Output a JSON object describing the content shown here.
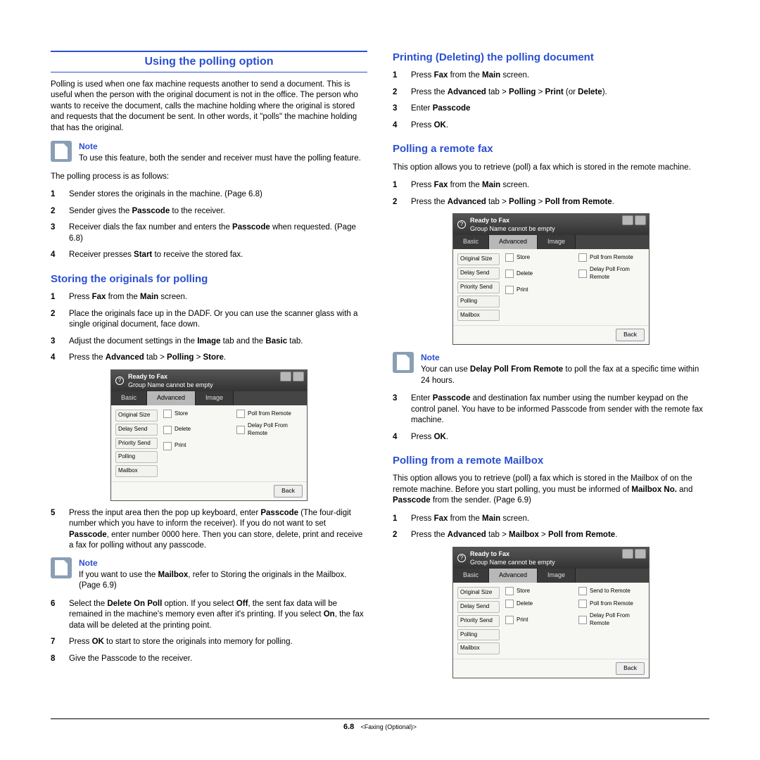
{
  "page": {
    "number": "6.8",
    "chapter": "<Faxing (Optional)>"
  },
  "left": {
    "main_heading": "Using the polling option",
    "intro": "Polling is used when one fax machine requests another to send a document. This is useful when the person with the original document is not in the office. The person who wants to receive the document, calls the machine holding where the original is stored and requests that the document be sent. In other words, it \"polls\" the machine holding that has the original.",
    "note1_label": "Note",
    "note1_text": "To use this feature, both the sender and receiver must have the polling feature.",
    "process_text": "The polling process is as follows:",
    "process": [
      "Sender stores the originals in the machine. (Page 6.8)",
      "Sender gives the <b>Passcode</b> to the receiver.",
      "Receiver dials the fax number and enters the <b>Passcode</b> when requested. (Page 6.8)",
      "Receiver presses <b>Start</b> to receive the stored fax."
    ],
    "sub1": "Storing the originals for polling",
    "store_steps_a": [
      "Press <b>Fax</b> from the <b>Main</b> screen.",
      "Place the originals face up in the DADF. Or you can use the scanner glass with a single original document, face down.",
      "Adjust the document settings in the <b>Image</b> tab and the <b>Basic</b> tab.",
      "Press the <b>Advanced</b> tab > <b>Polling</b> > <b>Store</b>."
    ],
    "store_step5": "Press the input area then the pop up keyboard, enter <b>Passcode</b> (The four-digit number which you have to inform the receiver). If you do not want to set <b>Passcode</b>, enter number 0000 here. Then you can store, delete, print and receive a fax for polling without any passcode.",
    "note2_label": "Note",
    "note2_text": "If you want to use the <b>Mailbox</b>, refer to Storing the originals in the Mailbox. (Page 6.9)",
    "store_steps_b": [
      "Select the <b>Delete On Poll</b> option. If you select <b>Off</b>, the sent fax data will be remained in the machine's memory even after it's printing. If you select <b>On</b>, the fax data will be deleted at the printing point.",
      "Press <b>OK</b> to start to store the originals into memory for polling.",
      "Give the Passcode to the receiver."
    ]
  },
  "right": {
    "sub1": "Printing (Deleting) the polling document",
    "print_steps": [
      "Press <b>Fax</b> from the <b>Main</b> screen.",
      "Press the <b>Advanced</b> tab > <b>Polling</b> > <b>Print</b> (or <b>Delete</b>).",
      "Enter <b>Passcode</b>",
      "Press <b>OK</b>."
    ],
    "sub2": "Polling a remote fax",
    "remote_intro": "This option allows you to retrieve (poll) a fax which is stored in the remote machine.",
    "remote_steps_a": [
      "Press <b>Fax</b> from the <b>Main</b> screen.",
      "Press the <b>Advanced</b> tab > <b>Polling</b> > <b>Poll from Remote</b>."
    ],
    "note3_label": "Note",
    "note3_text": "Your can use <b>Delay Poll From Remote</b> to poll the fax at a specific time within 24 hours.",
    "remote_steps_b": [
      "Enter <b>Passcode</b> and destination fax number using the number keypad on the control panel. You have to be informed Passcode from sender with the remote fax machine.",
      "Press <b>OK</b>."
    ],
    "sub3": "Polling from a remote Mailbox",
    "mailbox_intro": "This option allows you to retrieve (poll) a fax which is stored in the Mailbox of on the remote machine. Before you start polling, you must be informed of <b>Mailbox No.</b> and <b>Passcode</b> from the sender. (Page 6.9)",
    "mailbox_steps": [
      "Press <b>Fax</b> from the <b>Main</b> screen.",
      "Press the <b>Advanced</b> tab > <b>Mailbox</b> > <b>Poll from Remote</b>."
    ]
  },
  "screenshot_polling": {
    "title_line1": "Ready to Fax",
    "title_line2": "Group Name cannot be empty",
    "tabs": [
      "Basic",
      "Advanced",
      "Image"
    ],
    "side": [
      "Original Size",
      "Delay Send",
      "Priority Send",
      "Polling",
      "Mailbox"
    ],
    "options": [
      "Store",
      "Poll from Remote",
      "Delete",
      "Delay Poll From Remote",
      "Print"
    ],
    "back": "Back"
  },
  "screenshot_mailbox": {
    "title_line1": "Ready to Fax",
    "title_line2": "Group Name cannot be empty",
    "tabs": [
      "Basic",
      "Advanced",
      "Image"
    ],
    "side": [
      "Original Size",
      "Delay Send",
      "Priority Send",
      "Polling",
      "Mailbox"
    ],
    "options": [
      "Store",
      "Send to Remote",
      "Delete",
      "Poll from Remote",
      "Print",
      "Delay Poll From Remote"
    ],
    "back": "Back"
  },
  "colors": {
    "heading": "#2a4fd0",
    "note_icon_bg": "#8a9fb5"
  }
}
